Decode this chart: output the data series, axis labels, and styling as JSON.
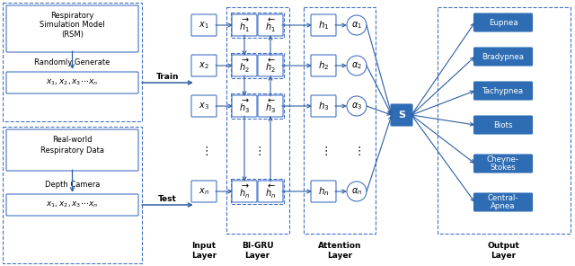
{
  "bg_color": "#ffffff",
  "blue_mid": "#4472C4",
  "blue_dark": "#2E5FA3",
  "out_fill": "#2E6DB4",
  "output_labels": [
    "Eupnea",
    "Bradypnea",
    "Tachypnea",
    "Biots",
    "Cheyne-\nStokes",
    "Central-\nApnea"
  ]
}
